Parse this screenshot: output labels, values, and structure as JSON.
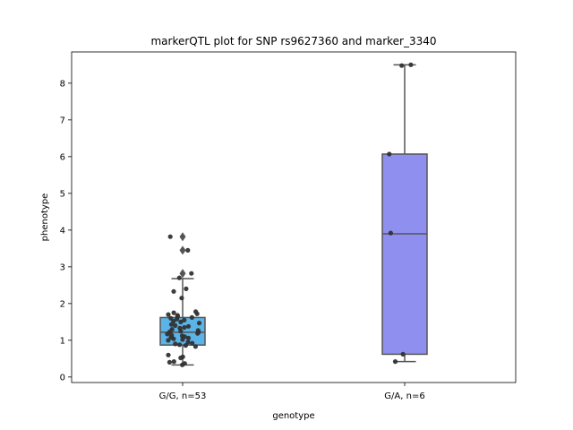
{
  "chart_data": {
    "type": "box",
    "title": "markerQTL plot for SNP rs9627360 and marker_3340",
    "xlabel": "genotype",
    "ylabel": "phenotype",
    "ylim": [
      -0.15,
      8.85
    ],
    "yticks": [
      0,
      1,
      2,
      3,
      4,
      5,
      6,
      7,
      8
    ],
    "grid": false,
    "categories": [
      "G/G, n=53",
      "G/A, n=6"
    ],
    "boxes": [
      {
        "category": "G/G, n=53",
        "color": "#5ab4e8",
        "q1": 0.87,
        "median": 1.22,
        "q3": 1.62,
        "whisker_low": 0.33,
        "whisker_high": 2.68,
        "outliers": [
          2.82,
          3.45,
          3.82
        ],
        "points": [
          0.33,
          0.37,
          0.4,
          0.42,
          0.52,
          0.55,
          0.6,
          0.83,
          0.86,
          0.88,
          0.9,
          0.92,
          0.95,
          1.0,
          1.02,
          1.04,
          1.06,
          1.08,
          1.1,
          1.12,
          1.14,
          1.17,
          1.19,
          1.22,
          1.23,
          1.25,
          1.27,
          1.3,
          1.33,
          1.35,
          1.38,
          1.4,
          1.43,
          1.47,
          1.5,
          1.52,
          1.55,
          1.58,
          1.6,
          1.62,
          1.65,
          1.68,
          1.7,
          1.72,
          1.75,
          1.78,
          2.15,
          2.33,
          2.4,
          2.7,
          2.82,
          3.45,
          3.82
        ]
      },
      {
        "category": "G/A, n=6",
        "color": "#8f8ff0",
        "q1": 0.62,
        "median": 3.9,
        "q3": 6.07,
        "whisker_low": 0.42,
        "whisker_high": 8.5,
        "outliers": [],
        "points": [
          0.42,
          0.62,
          3.92,
          6.07,
          8.48,
          8.5
        ]
      }
    ]
  }
}
